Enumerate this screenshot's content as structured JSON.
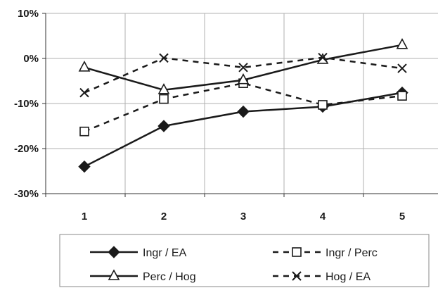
{
  "chart_data": {
    "type": "line",
    "x": [
      "1",
      "2",
      "3",
      "4",
      "5"
    ],
    "ylim": [
      -30,
      10
    ],
    "yticks": [
      "10%",
      "0%",
      "-10%",
      "-20%",
      "-30%"
    ],
    "grid": true,
    "legend_position": "bottom",
    "series": [
      {
        "name": "Ingr / EA",
        "values": [
          -24,
          -15,
          -11.8,
          -10.7,
          -7.6
        ],
        "line_style": "solid",
        "marker": "filled-diamond",
        "color": "#1a1a1a"
      },
      {
        "name": "Ingr / Perc",
        "values": [
          -16.2,
          -9.0,
          -5.5,
          -10.3,
          -8.3
        ],
        "line_style": "dashed",
        "marker": "open-square",
        "color": "#1a1a1a"
      },
      {
        "name": "Perc / Hog",
        "values": [
          -2.0,
          -7.0,
          -4.8,
          -0.3,
          3.0
        ],
        "line_style": "solid",
        "marker": "open-triangle",
        "color": "#1a1a1a"
      },
      {
        "name": "Hog / EA",
        "values": [
          -7.6,
          0.1,
          -2.0,
          0.2,
          -2.2
        ],
        "line_style": "dashed",
        "marker": "x",
        "color": "#1a1a1a"
      }
    ]
  }
}
